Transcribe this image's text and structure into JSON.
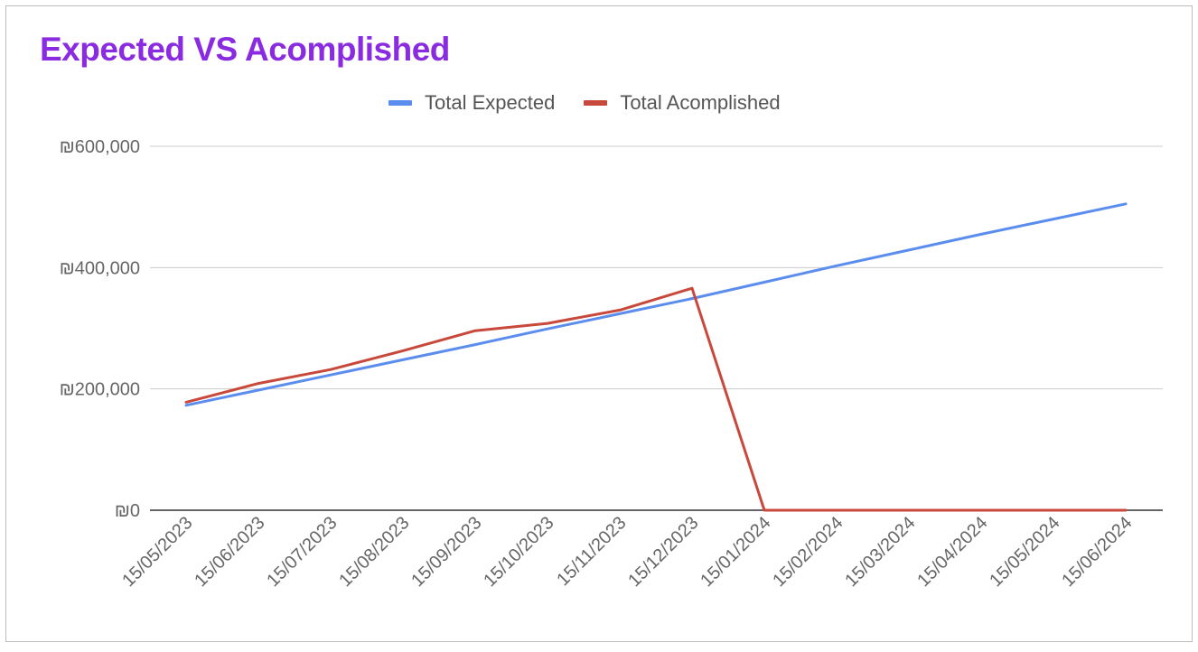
{
  "chart_data": {
    "type": "line",
    "title": "Expected VS Acomplished",
    "legend_position": "top-center",
    "grid": true,
    "ylim": [
      0,
      600000
    ],
    "yticks": [
      {
        "value": 0,
        "label": "₪0"
      },
      {
        "value": 200000,
        "label": "₪200,000"
      },
      {
        "value": 400000,
        "label": "₪400,000"
      },
      {
        "value": 600000,
        "label": "₪600,000"
      }
    ],
    "categories": [
      "15/05/2023",
      "15/06/2023",
      "15/07/2023",
      "15/08/2023",
      "15/09/2023",
      "15/10/2023",
      "15/11/2023",
      "15/12/2023",
      "15/01/2024",
      "15/02/2024",
      "15/03/2024",
      "15/04/2024",
      "15/05/2024",
      "15/06/2024"
    ],
    "series": [
      {
        "name": "Total Expected",
        "color": "#5b8def",
        "values": [
          173000,
          198000,
          223000,
          248000,
          273000,
          299000,
          324000,
          349000,
          376000,
          403000,
          429000,
          455000,
          480000,
          505000
        ]
      },
      {
        "name": "Total Acomplished",
        "color": "#c8493b",
        "values": [
          178000,
          209000,
          232000,
          263000,
          296000,
          308000,
          330000,
          366000,
          0,
          0,
          0,
          0,
          0,
          0
        ]
      }
    ]
  }
}
